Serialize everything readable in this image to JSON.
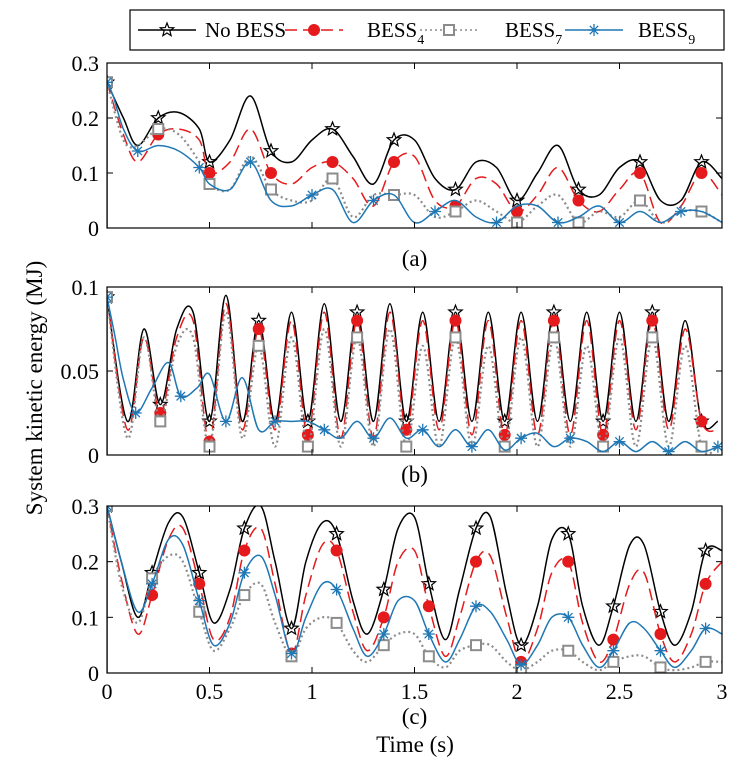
{
  "ylabel": "System kinetic energy (MJ)",
  "xlabel": "Time (s)",
  "legend": {
    "placement": "top",
    "items": [
      {
        "name": "No BESS",
        "main": "No BESS",
        "sub": "",
        "color": "#000000",
        "dash": "solid",
        "marker": "star"
      },
      {
        "name": "BESS4",
        "main": "BESS",
        "sub": "4",
        "color": "#e41a1c",
        "dash": "dashed",
        "marker": "circle"
      },
      {
        "name": "BESS7",
        "main": "BESS",
        "sub": "7",
        "color": "#8c8c8c",
        "dash": "dotted",
        "marker": "square"
      },
      {
        "name": "BESS9",
        "main": "BESS",
        "sub": "9",
        "color": "#1f77b4",
        "dash": "solid",
        "marker": "asterisk"
      }
    ]
  },
  "chart_data": [
    {
      "type": "line",
      "title": "(a)",
      "xlim": [
        0,
        3
      ],
      "ylim": [
        0,
        0.3
      ],
      "xticks": [
        "0",
        "0.5",
        "1",
        "1.5",
        "2",
        "2.5",
        "3"
      ],
      "show_xticklabels": false,
      "yticks": [
        0,
        0.1,
        0.2,
        0.3
      ],
      "yticklabels": [
        "0",
        "0.1",
        "0.2",
        "0.3"
      ],
      "series": [
        {
          "name": "No BESS",
          "x": [
            0,
            0.08,
            0.15,
            0.25,
            0.35,
            0.45,
            0.5,
            0.6,
            0.7,
            0.8,
            0.9,
            1.0,
            1.1,
            1.2,
            1.3,
            1.4,
            1.5,
            1.6,
            1.7,
            1.8,
            1.9,
            2.0,
            2.1,
            2.2,
            2.3,
            2.4,
            2.5,
            2.6,
            2.7,
            2.8,
            2.9,
            3.0
          ],
          "values": [
            0.265,
            0.2,
            0.15,
            0.2,
            0.21,
            0.18,
            0.12,
            0.16,
            0.24,
            0.14,
            0.12,
            0.16,
            0.18,
            0.13,
            0.08,
            0.16,
            0.16,
            0.09,
            0.07,
            0.12,
            0.11,
            0.05,
            0.1,
            0.15,
            0.07,
            0.06,
            0.11,
            0.12,
            0.05,
            0.05,
            0.12,
            0.09
          ]
        },
        {
          "name": "BESS4",
          "x": [
            0,
            0.08,
            0.15,
            0.25,
            0.35,
            0.45,
            0.5,
            0.6,
            0.7,
            0.8,
            0.9,
            1.0,
            1.1,
            1.2,
            1.3,
            1.4,
            1.5,
            1.6,
            1.7,
            1.8,
            1.9,
            2.0,
            2.1,
            2.2,
            2.3,
            2.4,
            2.5,
            2.6,
            2.7,
            2.8,
            2.9,
            3.0
          ],
          "values": [
            0.265,
            0.17,
            0.12,
            0.17,
            0.18,
            0.16,
            0.1,
            0.12,
            0.18,
            0.1,
            0.08,
            0.11,
            0.12,
            0.09,
            0.04,
            0.12,
            0.13,
            0.05,
            0.04,
            0.09,
            0.08,
            0.03,
            0.06,
            0.11,
            0.05,
            0.03,
            0.07,
            0.1,
            0.01,
            0.04,
            0.1,
            0.06
          ]
        },
        {
          "name": "BESS7",
          "x": [
            0,
            0.08,
            0.15,
            0.25,
            0.35,
            0.45,
            0.5,
            0.6,
            0.7,
            0.8,
            0.9,
            1.0,
            1.1,
            1.2,
            1.3,
            1.4,
            1.5,
            1.6,
            1.7,
            1.8,
            1.9,
            2.0,
            2.1,
            2.2,
            2.3,
            2.4,
            2.5,
            2.6,
            2.7,
            2.8,
            2.9,
            3.0
          ],
          "values": [
            0.265,
            0.16,
            0.15,
            0.18,
            0.17,
            0.12,
            0.08,
            0.07,
            0.13,
            0.07,
            0.05,
            0.05,
            0.09,
            0.02,
            0.06,
            0.06,
            0.06,
            0.02,
            0.03,
            0.05,
            0.03,
            0.01,
            0.04,
            0.06,
            0.01,
            0.03,
            0.02,
            0.05,
            0.01,
            0.03,
            0.03,
            0.01
          ]
        },
        {
          "name": "BESS9",
          "x": [
            0,
            0.03,
            0.08,
            0.15,
            0.25,
            0.35,
            0.45,
            0.5,
            0.6,
            0.7,
            0.8,
            0.9,
            1.0,
            1.1,
            1.2,
            1.3,
            1.4,
            1.5,
            1.6,
            1.7,
            1.8,
            1.9,
            2.0,
            2.1,
            2.2,
            2.3,
            2.4,
            2.5,
            2.6,
            2.7,
            2.8,
            2.9,
            3.0
          ],
          "values": [
            0.265,
            0.24,
            0.18,
            0.14,
            0.15,
            0.14,
            0.11,
            0.08,
            0.07,
            0.12,
            0.05,
            0.04,
            0.06,
            0.07,
            0.01,
            0.05,
            0.06,
            0.01,
            0.03,
            0.05,
            0.02,
            0.01,
            0.04,
            0.04,
            0.01,
            0.02,
            0.04,
            0.01,
            0.03,
            0.01,
            0.03,
            0.03,
            0.01
          ]
        }
      ]
    },
    {
      "type": "line",
      "title": "(b)",
      "xlim": [
        0,
        3
      ],
      "ylim": [
        0,
        0.1
      ],
      "xticks": [
        "0",
        "0.5",
        "1",
        "1.5",
        "2",
        "2.5",
        "3"
      ],
      "show_xticklabels": false,
      "yticks": [
        0,
        0.05,
        0.1
      ],
      "yticklabels": [
        "0",
        "0.05",
        "0.1"
      ],
      "series": [
        {
          "name": "No BESS",
          "x": [
            0,
            0.1,
            0.18,
            0.26,
            0.34,
            0.42,
            0.5,
            0.58,
            0.66,
            0.74,
            0.82,
            0.9,
            0.98,
            1.06,
            1.14,
            1.22,
            1.3,
            1.38,
            1.46,
            1.54,
            1.62,
            1.7,
            1.78,
            1.86,
            1.94,
            2.02,
            2.1,
            2.18,
            2.26,
            2.34,
            2.42,
            2.5,
            2.58,
            2.66,
            2.74,
            2.82,
            2.9,
            2.98
          ],
          "values": [
            0.094,
            0.02,
            0.075,
            0.03,
            0.075,
            0.085,
            0.02,
            0.095,
            0.02,
            0.08,
            0.02,
            0.085,
            0.02,
            0.09,
            0.02,
            0.085,
            0.02,
            0.09,
            0.02,
            0.085,
            0.02,
            0.085,
            0.02,
            0.085,
            0.02,
            0.085,
            0.02,
            0.085,
            0.02,
            0.085,
            0.02,
            0.085,
            0.02,
            0.085,
            0.02,
            0.08,
            0.02,
            0.02
          ]
        },
        {
          "name": "BESS4",
          "x": [
            0,
            0.1,
            0.18,
            0.26,
            0.34,
            0.42,
            0.5,
            0.58,
            0.66,
            0.74,
            0.82,
            0.9,
            0.98,
            1.06,
            1.14,
            1.22,
            1.3,
            1.38,
            1.46,
            1.54,
            1.62,
            1.7,
            1.78,
            1.86,
            1.94,
            2.02,
            2.1,
            2.18,
            2.26,
            2.34,
            2.42,
            2.5,
            2.58,
            2.66,
            2.74,
            2.82,
            2.9,
            2.98
          ],
          "values": [
            0.094,
            0.015,
            0.07,
            0.025,
            0.07,
            0.08,
            0.008,
            0.09,
            0.015,
            0.075,
            0.015,
            0.08,
            0.012,
            0.085,
            0.01,
            0.08,
            0.01,
            0.085,
            0.015,
            0.08,
            0.015,
            0.08,
            0.012,
            0.08,
            0.012,
            0.08,
            0.012,
            0.08,
            0.012,
            0.08,
            0.012,
            0.08,
            0.015,
            0.08,
            0.015,
            0.075,
            0.02,
            0.015
          ]
        },
        {
          "name": "BESS7",
          "x": [
            0,
            0.1,
            0.18,
            0.26,
            0.34,
            0.42,
            0.5,
            0.58,
            0.66,
            0.74,
            0.82,
            0.9,
            0.98,
            1.06,
            1.14,
            1.22,
            1.3,
            1.38,
            1.46,
            1.54,
            1.62,
            1.7,
            1.78,
            1.86,
            1.94,
            2.02,
            2.1,
            2.18,
            2.26,
            2.34,
            2.42,
            2.5,
            2.58,
            2.66,
            2.74,
            2.82,
            2.9,
            2.98
          ],
          "values": [
            0.094,
            0.01,
            0.07,
            0.02,
            0.065,
            0.07,
            0.005,
            0.085,
            0.01,
            0.065,
            0.005,
            0.07,
            0.005,
            0.075,
            0.005,
            0.07,
            0.005,
            0.075,
            0.005,
            0.065,
            0.005,
            0.07,
            0.005,
            0.065,
            0.005,
            0.07,
            0.005,
            0.07,
            0.005,
            0.065,
            0.005,
            0.07,
            0.005,
            0.07,
            0.005,
            0.065,
            0.005,
            0.005
          ]
        },
        {
          "name": "BESS9",
          "x": [
            0,
            0.04,
            0.08,
            0.14,
            0.22,
            0.3,
            0.36,
            0.44,
            0.5,
            0.58,
            0.66,
            0.74,
            0.82,
            0.9,
            0.98,
            1.06,
            1.14,
            1.22,
            1.3,
            1.38,
            1.46,
            1.54,
            1.62,
            1.7,
            1.78,
            1.86,
            1.94,
            2.02,
            2.1,
            2.18,
            2.26,
            2.34,
            2.42,
            2.5,
            2.58,
            2.66,
            2.74,
            2.82,
            2.9,
            2.98
          ],
          "values": [
            0.094,
            0.07,
            0.045,
            0.025,
            0.04,
            0.055,
            0.035,
            0.04,
            0.048,
            0.02,
            0.046,
            0.015,
            0.02,
            0.02,
            0.02,
            0.015,
            0.01,
            0.02,
            0.01,
            0.022,
            0.01,
            0.015,
            0.005,
            0.015,
            0.005,
            0.015,
            0.003,
            0.01,
            0.013,
            0.005,
            0.01,
            0.008,
            0.002,
            0.008,
            0.002,
            0.008,
            0.002,
            0.008,
            0.002,
            0.005
          ]
        }
      ]
    },
    {
      "type": "line",
      "title": "(c)",
      "xlim": [
        0,
        3
      ],
      "ylim": [
        0,
        0.3
      ],
      "xticks": [
        "0",
        "0.5",
        "1",
        "1.5",
        "2",
        "2.5",
        "3"
      ],
      "show_xticklabels": true,
      "yticks": [
        0,
        0.1,
        0.2,
        0.3
      ],
      "yticklabels": [
        "0",
        "0.1",
        "0.2",
        "0.3"
      ],
      "series": [
        {
          "name": "No BESS",
          "x": [
            0,
            0.07,
            0.15,
            0.22,
            0.3,
            0.37,
            0.45,
            0.52,
            0.6,
            0.67,
            0.75,
            0.82,
            0.9,
            0.97,
            1.05,
            1.12,
            1.2,
            1.27,
            1.35,
            1.42,
            1.5,
            1.57,
            1.65,
            1.72,
            1.8,
            1.87,
            1.95,
            2.02,
            2.1,
            2.17,
            2.25,
            2.32,
            2.4,
            2.47,
            2.55,
            2.62,
            2.7,
            2.77,
            2.85,
            2.92,
            3.0
          ],
          "values": [
            0.3,
            0.2,
            0.1,
            0.18,
            0.27,
            0.28,
            0.18,
            0.09,
            0.15,
            0.26,
            0.3,
            0.2,
            0.08,
            0.2,
            0.27,
            0.25,
            0.13,
            0.07,
            0.15,
            0.26,
            0.28,
            0.16,
            0.06,
            0.15,
            0.26,
            0.28,
            0.14,
            0.05,
            0.12,
            0.24,
            0.25,
            0.12,
            0.05,
            0.12,
            0.23,
            0.23,
            0.11,
            0.05,
            0.11,
            0.22,
            0.22
          ]
        },
        {
          "name": "BESS4",
          "x": [
            0,
            0.07,
            0.15,
            0.22,
            0.3,
            0.37,
            0.45,
            0.52,
            0.6,
            0.67,
            0.75,
            0.82,
            0.9,
            0.97,
            1.05,
            1.12,
            1.2,
            1.27,
            1.35,
            1.42,
            1.5,
            1.57,
            1.65,
            1.72,
            1.8,
            1.87,
            1.95,
            2.02,
            2.1,
            2.17,
            2.25,
            2.32,
            2.4,
            2.47,
            2.55,
            2.62,
            2.7,
            2.77,
            2.85,
            2.92,
            3.0
          ],
          "values": [
            0.3,
            0.17,
            0.07,
            0.14,
            0.24,
            0.26,
            0.16,
            0.06,
            0.1,
            0.22,
            0.26,
            0.16,
            0.035,
            0.14,
            0.23,
            0.22,
            0.11,
            0.04,
            0.1,
            0.2,
            0.22,
            0.12,
            0.03,
            0.1,
            0.2,
            0.21,
            0.1,
            0.02,
            0.08,
            0.18,
            0.2,
            0.09,
            0.02,
            0.06,
            0.16,
            0.18,
            0.07,
            0.02,
            0.07,
            0.16,
            0.2
          ]
        },
        {
          "name": "BESS7",
          "x": [
            0,
            0.07,
            0.15,
            0.22,
            0.3,
            0.37,
            0.45,
            0.52,
            0.6,
            0.67,
            0.75,
            0.82,
            0.9,
            0.97,
            1.05,
            1.12,
            1.2,
            1.27,
            1.35,
            1.42,
            1.5,
            1.57,
            1.65,
            1.72,
            1.8,
            1.87,
            1.95,
            2.02,
            2.1,
            2.17,
            2.25,
            2.32,
            2.4,
            2.47,
            2.55,
            2.62,
            2.7,
            2.77,
            2.85,
            2.92,
            3.0
          ],
          "values": [
            0.3,
            0.16,
            0.09,
            0.17,
            0.21,
            0.2,
            0.11,
            0.04,
            0.08,
            0.14,
            0.16,
            0.09,
            0.03,
            0.08,
            0.1,
            0.09,
            0.04,
            0.02,
            0.05,
            0.07,
            0.07,
            0.03,
            0.01,
            0.04,
            0.05,
            0.05,
            0.02,
            0.005,
            0.02,
            0.04,
            0.04,
            0.02,
            0.005,
            0.02,
            0.03,
            0.03,
            0.01,
            0.005,
            0.01,
            0.02,
            0.02
          ]
        },
        {
          "name": "BESS9",
          "x": [
            0,
            0.07,
            0.15,
            0.22,
            0.3,
            0.37,
            0.45,
            0.52,
            0.6,
            0.67,
            0.75,
            0.82,
            0.9,
            0.97,
            1.05,
            1.12,
            1.2,
            1.27,
            1.35,
            1.42,
            1.5,
            1.57,
            1.65,
            1.72,
            1.8,
            1.87,
            1.95,
            2.02,
            2.1,
            2.17,
            2.25,
            2.32,
            2.4,
            2.47,
            2.55,
            2.62,
            2.7,
            2.77,
            2.85,
            2.92,
            3.0
          ],
          "values": [
            0.3,
            0.2,
            0.11,
            0.16,
            0.24,
            0.23,
            0.13,
            0.05,
            0.09,
            0.18,
            0.21,
            0.14,
            0.035,
            0.1,
            0.16,
            0.15,
            0.08,
            0.03,
            0.07,
            0.13,
            0.13,
            0.07,
            0.02,
            0.06,
            0.12,
            0.11,
            0.06,
            0.015,
            0.05,
            0.1,
            0.1,
            0.05,
            0.01,
            0.04,
            0.09,
            0.08,
            0.04,
            0.01,
            0.04,
            0.08,
            0.07
          ]
        }
      ]
    }
  ]
}
